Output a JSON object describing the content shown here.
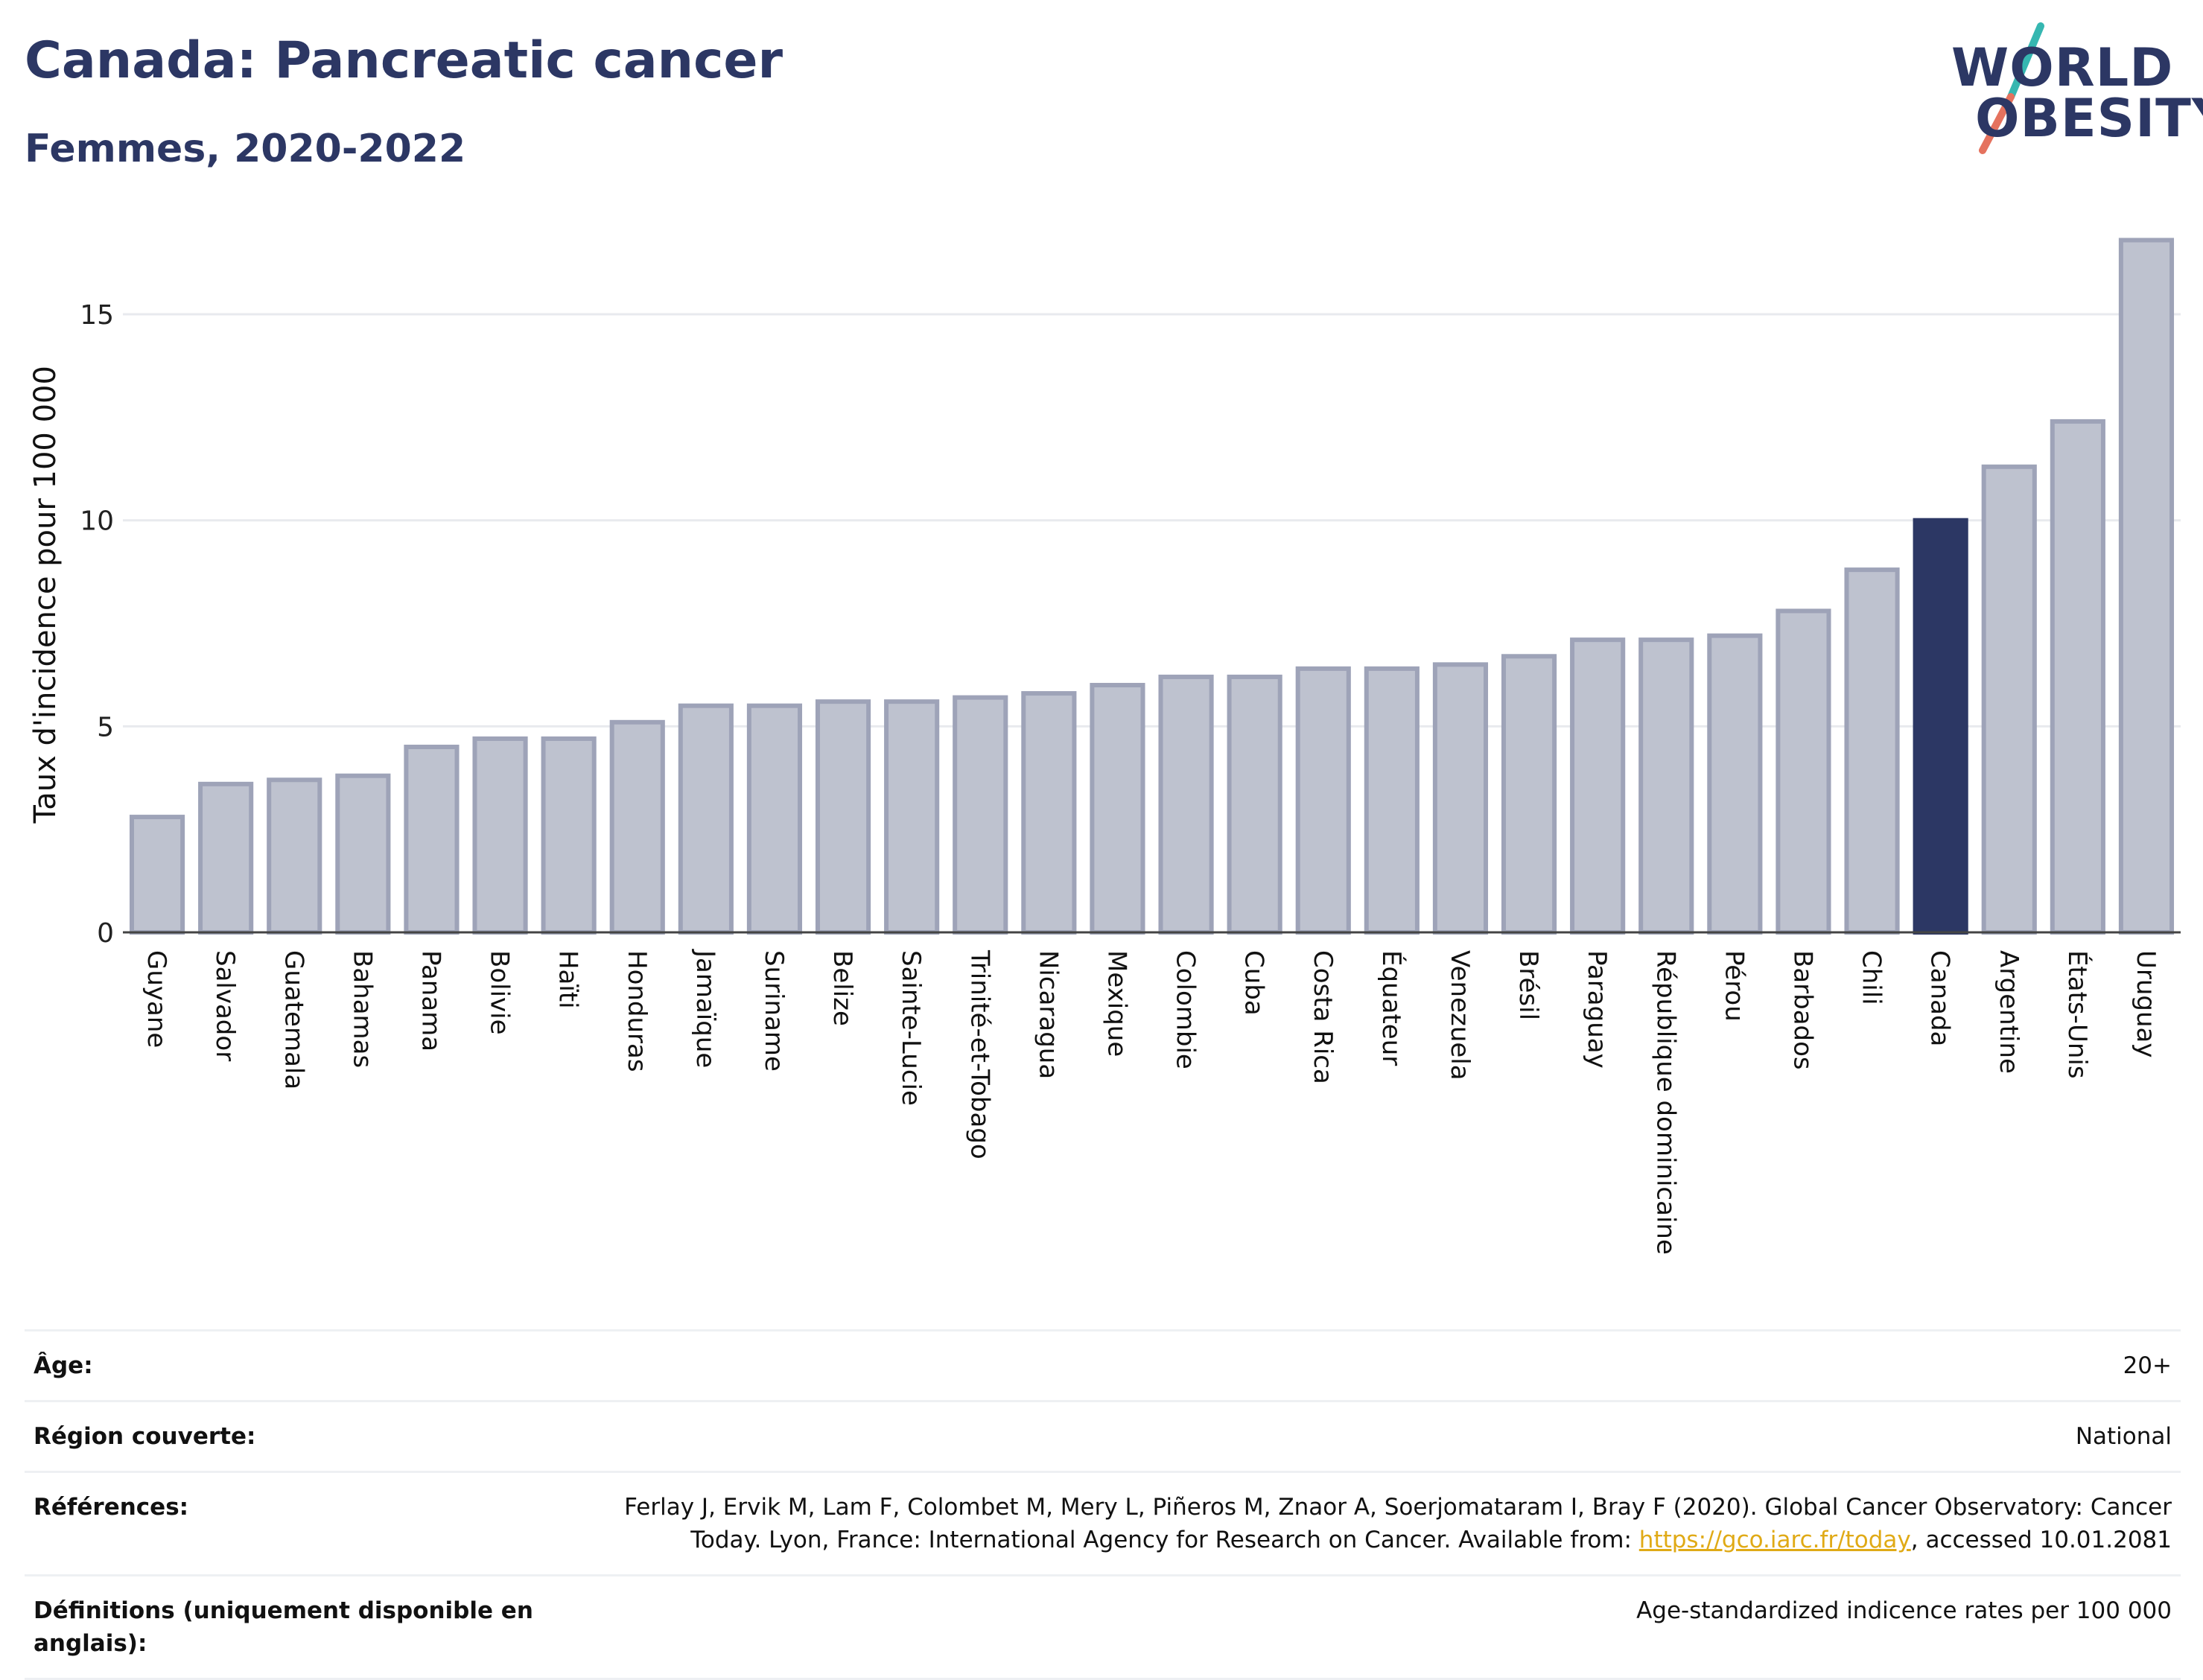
{
  "header": {
    "title": "Canada: Pancreatic cancer",
    "subtitle": "Femmes, 2020-2022"
  },
  "logo": {
    "line1": "WORLD",
    "line2": "OBESITY",
    "accent_colors": [
      "#36b7b1",
      "#e5725e"
    ]
  },
  "colors": {
    "bar": "#bec2cf",
    "bar_border": "#9ea3b8",
    "highlight": "#2c3764",
    "grid": "#e8eaee",
    "baseline": "#444444"
  },
  "chart_data": {
    "type": "bar",
    "ylabel": "Taux d'incidence pour 100 000",
    "xlabel": "",
    "ylim": [
      0,
      17
    ],
    "yticks": [
      0,
      5,
      10,
      15
    ],
    "highlight": "Canada",
    "grid": true,
    "categories": [
      "Guyane",
      "Salvador",
      "Guatemala",
      "Bahamas",
      "Panama",
      "Bolivie",
      "Haïti",
      "Honduras",
      "Jamaïque",
      "Suriname",
      "Belize",
      "Sainte-Lucie",
      "Trinité-et-Tobago",
      "Nicaragua",
      "Mexique",
      "Colombie",
      "Cuba",
      "Costa Rica",
      "Équateur",
      "Venezuela",
      "Brésil",
      "Paraguay",
      "République dominicaine",
      "Pérou",
      "Barbados",
      "Chili",
      "Canada",
      "Argentine",
      "États-Unis",
      "Uruguay"
    ],
    "values": [
      2.8,
      3.6,
      3.7,
      3.8,
      4.5,
      4.7,
      4.7,
      5.1,
      5.5,
      5.5,
      5.6,
      5.6,
      5.7,
      5.8,
      6.0,
      6.2,
      6.2,
      6.4,
      6.4,
      6.5,
      6.7,
      7.1,
      7.1,
      7.2,
      7.8,
      8.8,
      10.0,
      11.3,
      12.4,
      16.8
    ]
  },
  "metadata": [
    {
      "label": "Âge:",
      "value": "20+"
    },
    {
      "label": "Région couverte:",
      "value": "National"
    },
    {
      "label": "Références:",
      "value_before": "Ferlay J, Ervik M, Lam F, Colombet M, Mery L, Piñeros M, Znaor A, Soerjomataram I, Bray F (2020). Global Cancer Observatory: Cancer Today. Lyon, France: International Agency for Research on Cancer. Available from: ",
      "link": "https://gco.iarc.fr/today",
      "value_after": ", accessed 10.01.2081"
    },
    {
      "label": "Définitions (uniquement disponible en anglais):",
      "value": "Age-standardized indicence rates per 100 000"
    }
  ]
}
